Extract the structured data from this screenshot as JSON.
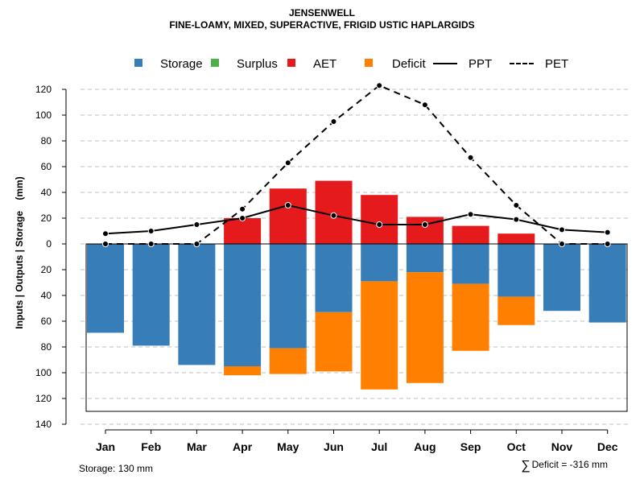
{
  "title": "JENSENWELL",
  "subtitle": "FINE-LOAMY, MIXED, SUPERACTIVE, FRIGID USTIC HAPLARGIDS",
  "legend": [
    {
      "label": "Storage",
      "color": "#377EB8",
      "kind": "box"
    },
    {
      "label": "Surplus",
      "color": "#4DAF4A",
      "kind": "box"
    },
    {
      "label": "AET",
      "color": "#E41A1C",
      "kind": "box"
    },
    {
      "label": "Deficit",
      "color": "#FF7F00",
      "kind": "box"
    },
    {
      "label": "PPT",
      "color": "#000000",
      "kind": "line"
    },
    {
      "label": "PET",
      "color": "#000000",
      "kind": "dashed"
    }
  ],
  "footer": {
    "storage_label": "Storage: 130 mm",
    "deficit_symbol": "∑",
    "deficit_label": "Deficit = -316 mm"
  },
  "chart_data": {
    "type": "bar",
    "ylabel": "Inputs | Outputs | Storage    (mm)",
    "ylim": [
      -140,
      130
    ],
    "yticks": [
      120,
      100,
      80,
      60,
      40,
      20,
      0,
      -20,
      -40,
      -60,
      -80,
      -100,
      -120,
      -140
    ],
    "ytick_labels": [
      "120",
      "100",
      "80",
      "60",
      "40",
      "20",
      "0",
      "20",
      "40",
      "60",
      "80",
      "100",
      "120",
      "140"
    ],
    "storage_capacity": 130,
    "categories": [
      "Jan",
      "Feb",
      "Mar",
      "Apr",
      "May",
      "Jun",
      "Jul",
      "Aug",
      "Sep",
      "Oct",
      "Nov",
      "Dec"
    ],
    "colors": {
      "storage": "#377EB8",
      "surplus": "#4DAF4A",
      "aet": "#E41A1C",
      "deficit": "#FF7F00"
    },
    "series": [
      {
        "name": "AET",
        "values": [
          0,
          0,
          0,
          20,
          43,
          49,
          38,
          21,
          14,
          8,
          0,
          0
        ]
      },
      {
        "name": "Storage",
        "values": [
          69,
          79,
          94,
          95,
          81,
          53,
          29,
          22,
          31,
          41,
          52,
          61
        ]
      },
      {
        "name": "Deficit",
        "values": [
          0,
          0,
          0,
          7,
          20,
          46,
          84,
          86,
          52,
          22,
          0,
          0
        ]
      },
      {
        "name": "Surplus",
        "values": [
          0,
          0,
          0,
          0,
          0,
          0,
          0,
          0,
          0,
          0,
          0,
          0
        ]
      },
      {
        "name": "PPT",
        "values": [
          8,
          10,
          15,
          20,
          30,
          22,
          15,
          15,
          23,
          19,
          11,
          9
        ]
      },
      {
        "name": "PET",
        "values": [
          0,
          0,
          0,
          27,
          63,
          95,
          123,
          108,
          67,
          30,
          0,
          0
        ]
      }
    ]
  }
}
